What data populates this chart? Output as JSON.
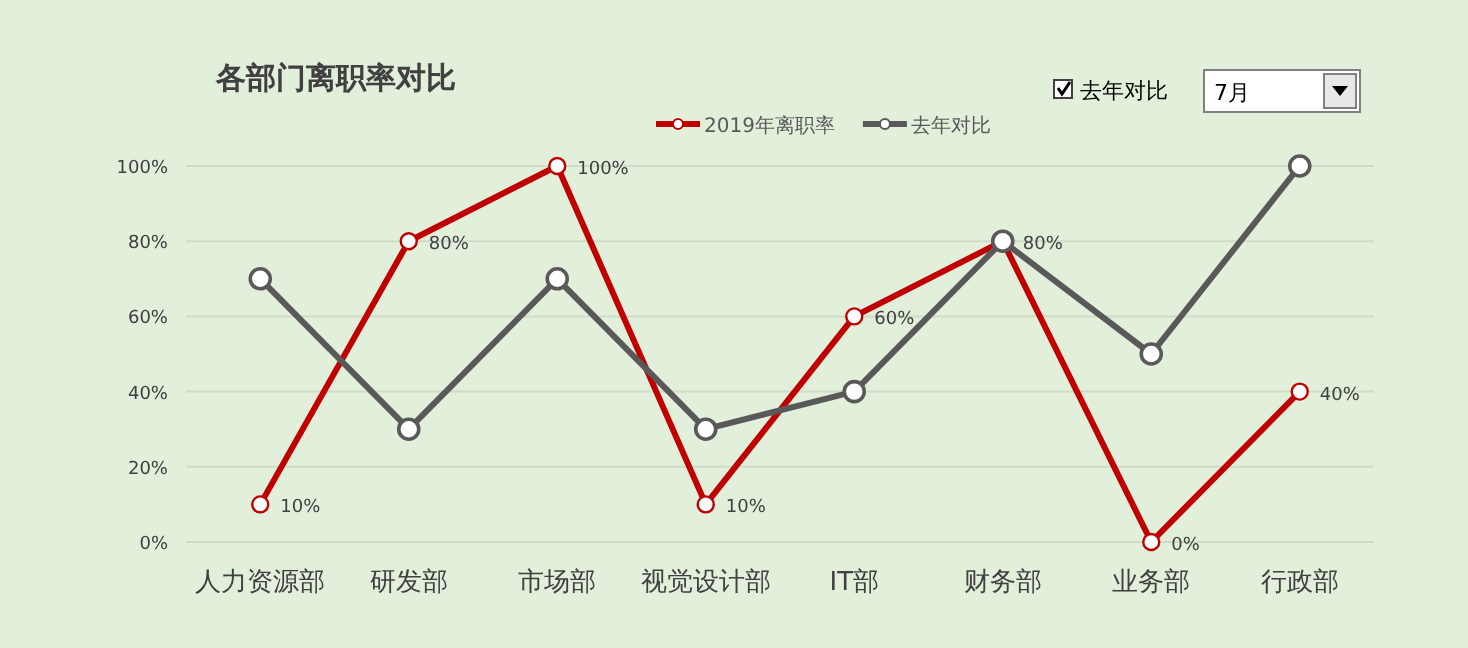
{
  "chart_data": {
    "type": "line",
    "title": "各部门离职率对比",
    "categories": [
      "人力资源部",
      "研发部",
      "市场部",
      "视觉设计部",
      "IT部",
      "财务部",
      "业务部",
      "行政部"
    ],
    "series": [
      {
        "name": "2019年离职率",
        "color": "#c00000",
        "values": [
          10,
          80,
          100,
          10,
          60,
          80,
          0,
          40
        ],
        "value_labels": [
          "10%",
          "80%",
          "100%",
          "10%",
          "60%",
          "80%",
          "0%",
          "40%"
        ]
      },
      {
        "name": "去年对比",
        "color": "#595959",
        "values": [
          70,
          30,
          70,
          30,
          40,
          80,
          50,
          100
        ]
      }
    ],
    "ylim": [
      0,
      100
    ],
    "yticks": [
      {
        "value": 0,
        "label": "0%"
      },
      {
        "value": 20,
        "label": "20%"
      },
      {
        "value": 40,
        "label": "40%"
      },
      {
        "value": 60,
        "label": "60%"
      },
      {
        "value": 80,
        "label": "80%"
      },
      {
        "value": 100,
        "label": "100%"
      }
    ],
    "grid": "y",
    "legend": "top",
    "marker": "circle",
    "line_style": "solid",
    "annotations": [
      "去年对比",
      "7月"
    ]
  }
}
